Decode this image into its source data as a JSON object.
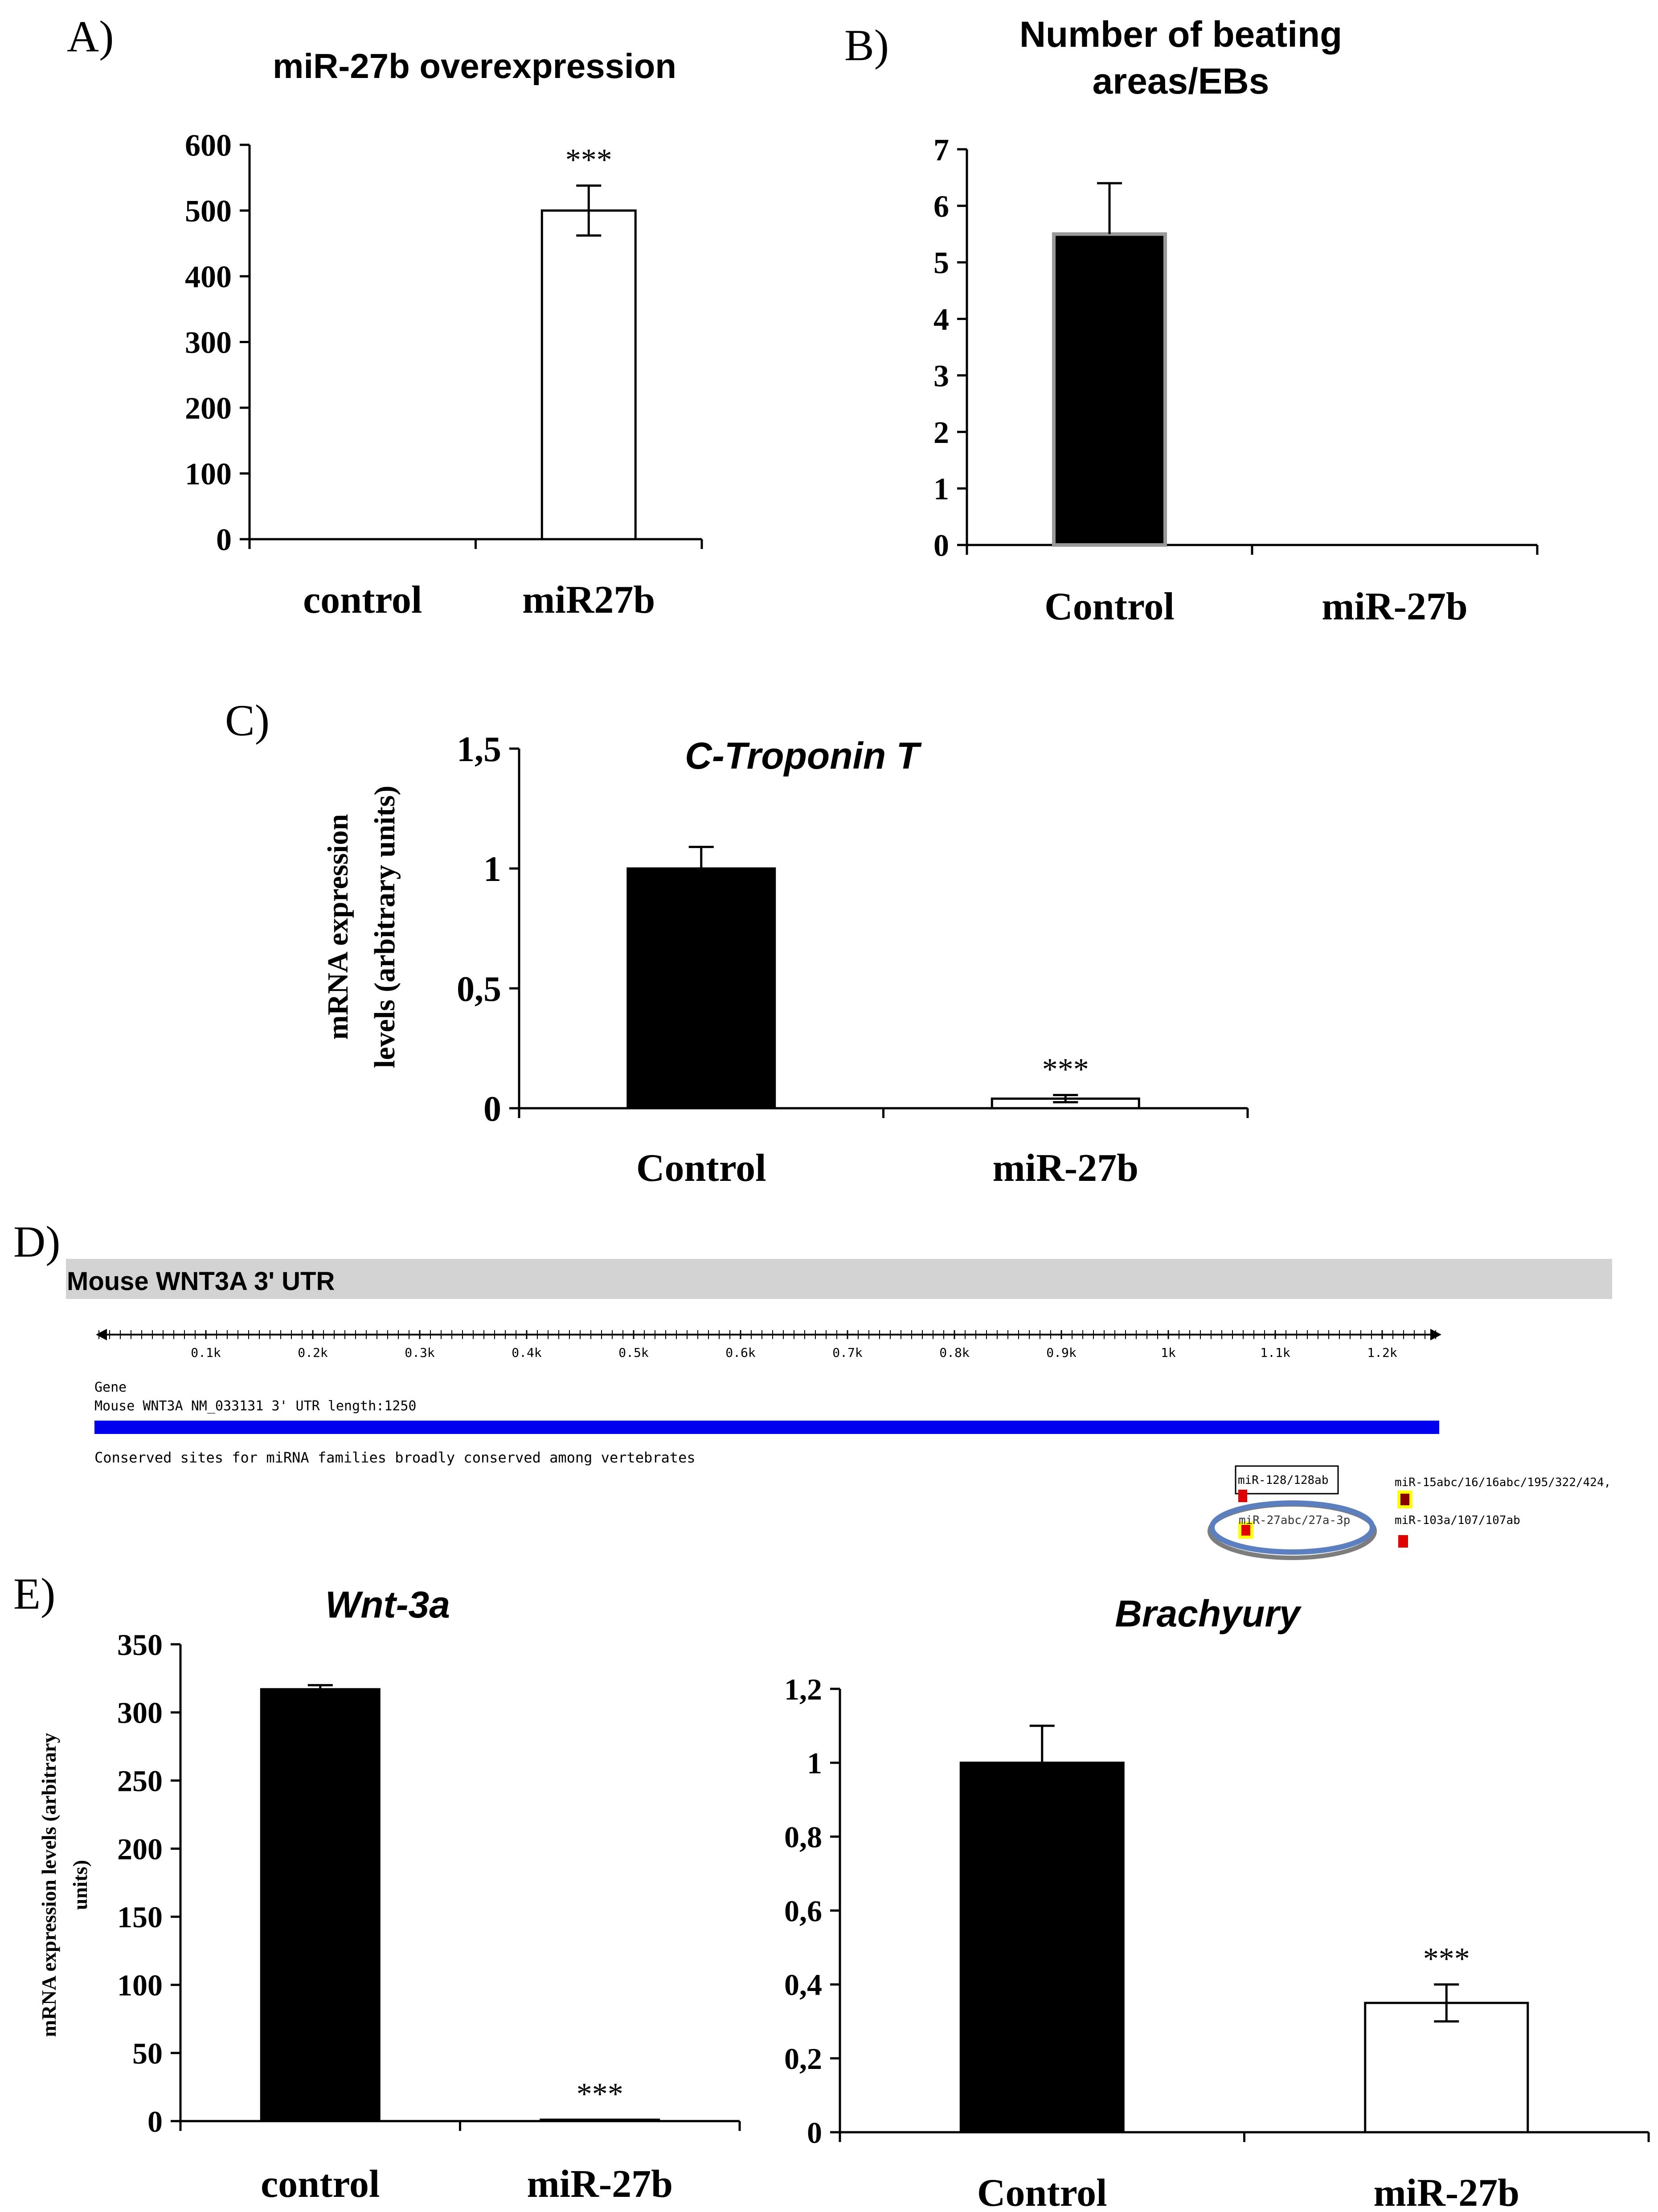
{
  "panels": {
    "A": {
      "label": "A)"
    },
    "B": {
      "label": "B)"
    },
    "C": {
      "label": "C)"
    },
    "D": {
      "label": "D)",
      "header": "Mouse WNT3A  3' UTR",
      "ruler_ticks": [
        "0.1k",
        "0.2k",
        "0.3k",
        "0.4k",
        "0.5k",
        "0.6k",
        "0.7k",
        "0.8k",
        "0.9k",
        "1k",
        "1.1k",
        "1.2k"
      ],
      "gene_heading": "Gene",
      "gene_text": "Mouse WNT3A NM_033131 3' UTR length:1250",
      "conserved_text": "Conserved sites for miRNA families broadly conserved among vertebrates",
      "sites": [
        "miR-128/128ab",
        "miR-27abc/27a-3p",
        "miR-15abc/16/16abc/195/322/424,",
        "miR-103a/107/107ab"
      ],
      "colors": {
        "gene_bar": "#0000ee",
        "header_bg": "#d3d3d3",
        "site_red": "#e00000",
        "site_yellow": "#ffff00",
        "highlight_ring": "#5b7fbf"
      }
    },
    "E": {
      "label": "E)"
    }
  },
  "chart_data": [
    {
      "id": "A",
      "type": "bar",
      "title": "miR-27b overexpression",
      "categories": [
        "control",
        "miR27b"
      ],
      "values": [
        0,
        500
      ],
      "errors": [
        0,
        38
      ],
      "fills": [
        "#ffffff",
        "#ffffff"
      ],
      "annotations": [
        "",
        "***"
      ],
      "ylim": [
        0,
        600
      ],
      "yticks": [
        "0",
        "100",
        "200",
        "300",
        "400",
        "500",
        "600"
      ],
      "xlabel": "",
      "ylabel": ""
    },
    {
      "id": "B",
      "type": "bar",
      "title": [
        "Number of beating",
        "areas/EBs"
      ],
      "categories": [
        "Control",
        "miR-27b"
      ],
      "values": [
        5.5,
        0
      ],
      "errors": [
        0.9,
        0
      ],
      "fills": [
        "#000000",
        "#000000"
      ],
      "annotations": [
        "",
        ""
      ],
      "ylim": [
        0,
        7
      ],
      "yticks": [
        "0",
        "1",
        "2",
        "3",
        "4",
        "5",
        "6",
        "7"
      ],
      "xlabel": "",
      "ylabel": ""
    },
    {
      "id": "C",
      "type": "bar",
      "title": "C-Troponin T",
      "categories": [
        "Control",
        "miR-27b"
      ],
      "values": [
        1.0,
        0.04
      ],
      "errors": [
        0.09,
        0.015
      ],
      "fills": [
        "#000000",
        "#ffffff"
      ],
      "annotations": [
        "",
        "***"
      ],
      "ylim": [
        0,
        1.5
      ],
      "yticks": [
        "0",
        "0,5",
        "1",
        "1,5"
      ],
      "xlabel": "",
      "ylabel": [
        "mRNA expression",
        "levels (arbitrary units)"
      ]
    },
    {
      "id": "E1",
      "type": "bar",
      "title": "Wnt-3a",
      "categories": [
        "control",
        "miR-27b"
      ],
      "values": [
        317,
        1
      ],
      "errors": [
        3,
        0
      ],
      "fills": [
        "#000000",
        "#000000"
      ],
      "annotations": [
        "",
        "***"
      ],
      "ylim": [
        0,
        350
      ],
      "yticks": [
        "0",
        "50",
        "100",
        "150",
        "200",
        "250",
        "300",
        "350"
      ],
      "xlabel": "",
      "ylabel": [
        "mRNA expression levels (arbitrary",
        "units)"
      ]
    },
    {
      "id": "E2",
      "type": "bar",
      "title": "Brachyury",
      "categories": [
        "Control",
        "miR-27b"
      ],
      "values": [
        1.0,
        0.35
      ],
      "errors": [
        0.1,
        0.05
      ],
      "fills": [
        "#000000",
        "#ffffff"
      ],
      "annotations": [
        "",
        "***"
      ],
      "ylim": [
        0,
        1.2
      ],
      "yticks": [
        "0",
        "0,2",
        "0,4",
        "0,6",
        "0,8",
        "1",
        "1,2"
      ],
      "xlabel": "",
      "ylabel": ""
    }
  ]
}
